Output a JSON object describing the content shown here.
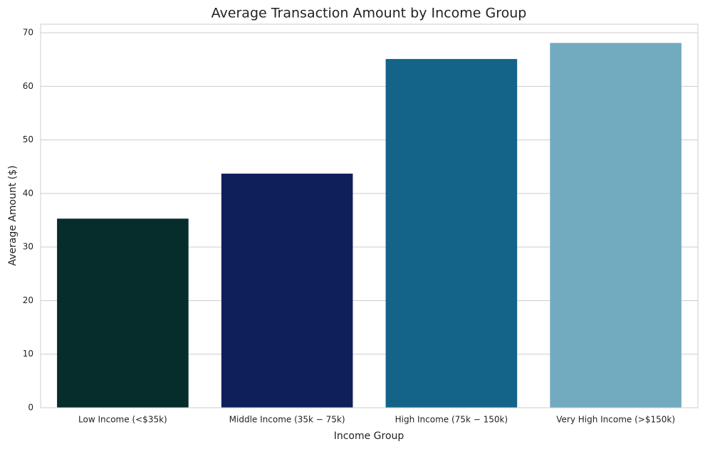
{
  "chart_data": {
    "type": "bar",
    "title": "Average Transaction Amount by Income Group",
    "x_label": "Income Group",
    "y_label": "Average Amount ($)",
    "categories": [
      "Low Income (<$35k)",
      "Middle Income (35k − 75k)",
      "High Income (75k − 150k)",
      "Very High Income (>$150k)"
    ],
    "values": [
      35.3,
      43.7,
      65.1,
      68.1
    ],
    "colors": [
      "#062c2c",
      "#0f1f5a",
      "#146389",
      "#72abbf"
    ],
    "ylim": [
      0,
      71.6
    ],
    "yticks": [
      0,
      10,
      20,
      30,
      40,
      50,
      60,
      70
    ],
    "grid": true
  }
}
